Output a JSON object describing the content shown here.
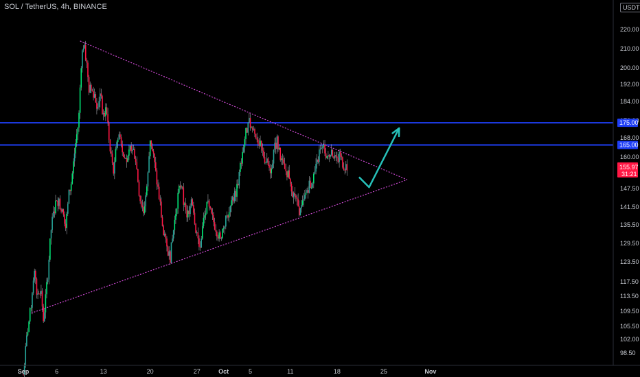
{
  "header": {
    "title": "SOL / TetherUS, 4h, BINANCE",
    "unit": "USDT"
  },
  "colors": {
    "background": "#000000",
    "up": "#26a69a",
    "up_bright": "#00e676",
    "down": "#ff1744",
    "wick": "#d1d4dc",
    "level_line": "#1e3ef5",
    "trend_line": "#d04ad6",
    "arrow": "#27c1ba",
    "price_tag": "#ff1744"
  },
  "chart_data": {
    "type": "candlestick",
    "symbol": "SOL / TetherUS",
    "interval": "4h",
    "exchange": "BINANCE",
    "y_ticks": [
      "220.00",
      "210.00",
      "200.00",
      "192.00",
      "184.00",
      "176.00",
      "168.00",
      "160.00",
      "147.50",
      "141.50",
      "135.50",
      "129.50",
      "123.50",
      "117.50",
      "113.50",
      "109.50",
      "105.50",
      "102.00",
      "98.50"
    ],
    "x_ticks": [
      {
        "label": "Sep",
        "bold": true,
        "day": 0
      },
      {
        "label": "6",
        "bold": false,
        "day": 5
      },
      {
        "label": "13",
        "bold": false,
        "day": 12
      },
      {
        "label": "20",
        "bold": false,
        "day": 19
      },
      {
        "label": "27",
        "bold": false,
        "day": 26
      },
      {
        "label": "Oct",
        "bold": true,
        "day": 30
      },
      {
        "label": "5",
        "bold": false,
        "day": 34
      },
      {
        "label": "11",
        "bold": false,
        "day": 40
      },
      {
        "label": "18",
        "bold": false,
        "day": 47
      },
      {
        "label": "25",
        "bold": false,
        "day": 54
      },
      {
        "label": "Nov",
        "bold": true,
        "day": 61
      }
    ],
    "horizontal_levels": [
      {
        "price": 175.0,
        "label": "175.00"
      },
      {
        "price": 165.0,
        "label": "165.00"
      }
    ],
    "current_price": {
      "price": 155.97,
      "label": "155.97",
      "countdown": "31:21"
    },
    "trendlines": [
      {
        "name": "upper",
        "from": {
          "day": 8.5,
          "price": 214.0
        },
        "to": {
          "day": 57.5,
          "price": 151.0
        }
      },
      {
        "name": "lower",
        "from": {
          "day": 1.2,
          "price": 109.0
        },
        "to": {
          "day": 57.5,
          "price": 151.0
        }
      }
    ],
    "projection_arrow": [
      {
        "day": 50.3,
        "price": 152.0
      },
      {
        "day": 51.8,
        "price": 148.0
      },
      {
        "day": 56.3,
        "price": 172.5
      }
    ],
    "price_path": [
      [
        0.0,
        93.0
      ],
      [
        0.6,
        104.0
      ],
      [
        1.1,
        110.0
      ],
      [
        1.6,
        121.0
      ],
      [
        2.0,
        114.0
      ],
      [
        2.6,
        116.0
      ],
      [
        3.0,
        107.0
      ],
      [
        3.6,
        118.0
      ],
      [
        4.2,
        135.0
      ],
      [
        5.0,
        145.0
      ],
      [
        5.6,
        141.0
      ],
      [
        6.4,
        136.0
      ],
      [
        6.8,
        145.0
      ],
      [
        7.2,
        150.0
      ],
      [
        7.8,
        165.0
      ],
      [
        8.3,
        176.0
      ],
      [
        8.7,
        205.0
      ],
      [
        9.0,
        212.0
      ],
      [
        9.4,
        205.0
      ],
      [
        9.8,
        190.0
      ],
      [
        10.6,
        188.0
      ],
      [
        11.0,
        183.0
      ],
      [
        11.5,
        187.0
      ],
      [
        12.0,
        178.0
      ],
      [
        12.5,
        180.0
      ],
      [
        13.0,
        162.0
      ],
      [
        13.6,
        154.0
      ],
      [
        14.0,
        167.0
      ],
      [
        14.5,
        170.0
      ],
      [
        15.0,
        160.0
      ],
      [
        15.6,
        158.0
      ],
      [
        16.2,
        165.0
      ],
      [
        16.8,
        160.0
      ],
      [
        17.4,
        145.0
      ],
      [
        18.0,
        140.0
      ],
      [
        18.6,
        150.0
      ],
      [
        19.0,
        168.0
      ],
      [
        19.5,
        160.0
      ],
      [
        20.0,
        150.0
      ],
      [
        20.5,
        142.0
      ],
      [
        21.0,
        132.0
      ],
      [
        21.5,
        128.0
      ],
      [
        22.0,
        125.0
      ],
      [
        22.4,
        132.0
      ],
      [
        23.0,
        143.0
      ],
      [
        23.6,
        150.0
      ],
      [
        24.0,
        143.0
      ],
      [
        24.6,
        138.0
      ],
      [
        25.2,
        146.0
      ],
      [
        25.8,
        135.0
      ],
      [
        26.4,
        128.0
      ],
      [
        27.0,
        137.0
      ],
      [
        27.6,
        142.0
      ],
      [
        28.2,
        138.0
      ],
      [
        28.8,
        135.0
      ],
      [
        29.4,
        131.0
      ],
      [
        30.0,
        135.0
      ],
      [
        30.6,
        139.0
      ],
      [
        31.2,
        142.0
      ],
      [
        31.8,
        146.0
      ],
      [
        32.3,
        152.0
      ],
      [
        32.8,
        162.0
      ],
      [
        33.3,
        170.0
      ],
      [
        33.8,
        175.0
      ],
      [
        34.3,
        172.0
      ],
      [
        34.8,
        170.0
      ],
      [
        35.3,
        166.0
      ],
      [
        35.8,
        162.0
      ],
      [
        36.4,
        158.0
      ],
      [
        37.0,
        155.0
      ],
      [
        37.5,
        162.0
      ],
      [
        38.0,
        167.0
      ],
      [
        38.6,
        158.0
      ],
      [
        39.2,
        155.0
      ],
      [
        39.8,
        153.0
      ],
      [
        40.4,
        146.0
      ],
      [
        41.0,
        142.0
      ],
      [
        41.5,
        140.0
      ],
      [
        42.0,
        143.0
      ],
      [
        42.6,
        148.0
      ],
      [
        43.2,
        150.0
      ],
      [
        43.8,
        155.0
      ],
      [
        44.4,
        162.0
      ],
      [
        45.0,
        163.0
      ],
      [
        45.6,
        160.0
      ],
      [
        46.2,
        163.0
      ],
      [
        46.8,
        158.0
      ],
      [
        47.4,
        160.0
      ],
      [
        48.0,
        157.0
      ],
      [
        48.6,
        156.0
      ]
    ]
  }
}
